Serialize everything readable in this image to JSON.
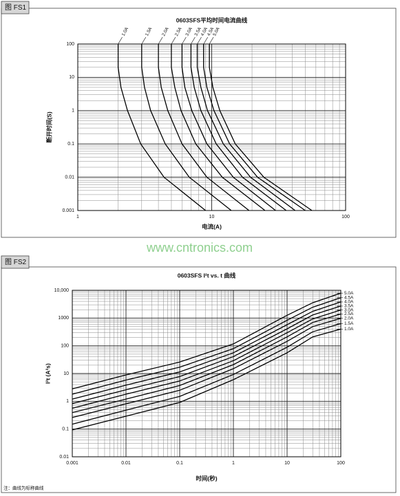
{
  "figure_labels": [
    "图 FS1",
    "图 FS2"
  ],
  "watermark": "www.cntronics.com",
  "note": "注：曲线为标称曲线",
  "chart_data": [
    {
      "type": "line",
      "title": "0603SFS平均时间电流曲线",
      "xlabel": "电流(A)",
      "ylabel": "断开时间(S)",
      "log_x": true,
      "log_y": true,
      "grid": true,
      "series_label_position": "top",
      "color": "#000000",
      "xlim": [
        1,
        100
      ],
      "ylim": [
        0.001,
        100
      ],
      "xticks": [
        1,
        10,
        100
      ],
      "yticks": [
        0.001,
        0.01,
        0.1,
        1,
        10,
        100
      ],
      "series": [
        {
          "name": "1.0A",
          "x": [
            2.0,
            2.0,
            2.1,
            2.35,
            2.95,
            4.4,
            9.0
          ],
          "values": [
            100,
            20,
            5,
            1,
            0.1,
            0.01,
            0.001
          ]
        },
        {
          "name": "1.5A",
          "x": [
            3.0,
            3.0,
            3.15,
            3.5,
            4.5,
            6.8,
            14
          ],
          "values": [
            100,
            20,
            5,
            1,
            0.1,
            0.01,
            0.001
          ]
        },
        {
          "name": "2.0A",
          "x": [
            4.0,
            4.0,
            4.2,
            4.7,
            6.0,
            9.2,
            19
          ],
          "values": [
            100,
            20,
            5,
            1,
            0.1,
            0.01,
            0.001
          ]
        },
        {
          "name": "2.5A",
          "x": [
            5.0,
            5.0,
            5.3,
            5.9,
            7.6,
            12,
            25
          ],
          "values": [
            100,
            20,
            5,
            1,
            0.1,
            0.01,
            0.001
          ]
        },
        {
          "name": "3.0A",
          "x": [
            6.0,
            6.0,
            6.3,
            7.1,
            9.2,
            14.5,
            30
          ],
          "values": [
            100,
            20,
            5,
            1,
            0.1,
            0.01,
            0.001
          ]
        },
        {
          "name": "3.5A",
          "x": [
            7.0,
            7.0,
            7.4,
            8.3,
            10.8,
            17,
            36
          ],
          "values": [
            100,
            20,
            5,
            1,
            0.1,
            0.01,
            0.001
          ]
        },
        {
          "name": "4.0A",
          "x": [
            7.8,
            7.8,
            8.3,
            9.3,
            12.2,
            19.5,
            42
          ],
          "values": [
            100,
            20,
            5,
            1,
            0.1,
            0.01,
            0.001
          ]
        },
        {
          "name": "4.5A",
          "x": [
            8.7,
            8.7,
            9.2,
            10.4,
            13.6,
            22,
            50
          ],
          "values": [
            100,
            20,
            5,
            1,
            0.1,
            0.01,
            0.001
          ]
        },
        {
          "name": "5.0A",
          "x": [
            9.6,
            9.6,
            10.2,
            11.5,
            15,
            24.5,
            56
          ],
          "values": [
            100,
            20,
            5,
            1,
            0.1,
            0.01,
            0.001
          ]
        }
      ]
    },
    {
      "type": "line",
      "title": "0603SFS I²t vs. t 曲线",
      "xlabel": "时间(秒)",
      "ylabel": "I²t (A²s)",
      "log_x": true,
      "log_y": true,
      "grid": true,
      "series_label_position": "right",
      "color": "#000000",
      "xlim": [
        0.001,
        100
      ],
      "ylim": [
        0.01,
        10000
      ],
      "xticks": [
        0.001,
        0.01,
        0.1,
        1,
        10,
        100
      ],
      "yticks": [
        0.01,
        0.1,
        1,
        10,
        100,
        1000,
        {
          "value": 10000,
          "label": "10,000"
        }
      ],
      "x": [
        0.001,
        0.01,
        0.1,
        1,
        10,
        30,
        100
      ],
      "series": [
        {
          "name": "1.0A",
          "values": [
            0.093,
            0.29,
            0.91,
            6.0,
            56,
            210,
            400
          ]
        },
        {
          "name": "1.5A",
          "values": [
            0.15,
            0.48,
            1.5,
            9.3,
            89,
            320,
            630
          ]
        },
        {
          "name": "2.0A",
          "values": [
            0.26,
            0.81,
            2.5,
            15,
            145,
            490,
            980
          ]
        },
        {
          "name": "2.5A",
          "values": [
            0.39,
            1.2,
            3.7,
            21,
            210,
            690,
            1400
          ]
        },
        {
          "name": "3.0A",
          "values": [
            0.56,
            1.8,
            5.4,
            29,
            295,
            930,
            1950
          ]
        },
        {
          "name": "3.5A",
          "values": [
            0.83,
            2.6,
            7.8,
            41,
            410,
            1290,
            2700
          ]
        },
        {
          "name": "4.0A",
          "values": [
            1.2,
            3.8,
            11.5,
            56,
            575,
            1740,
            3800
          ]
        },
        {
          "name": "4.5A",
          "values": [
            1.8,
            5.8,
            17,
            79,
            830,
            2450,
            5400
          ]
        },
        {
          "name": "5.0A",
          "values": [
            2.8,
            8.9,
            26,
            117,
            1260,
            3550,
            7900
          ]
        }
      ]
    }
  ]
}
